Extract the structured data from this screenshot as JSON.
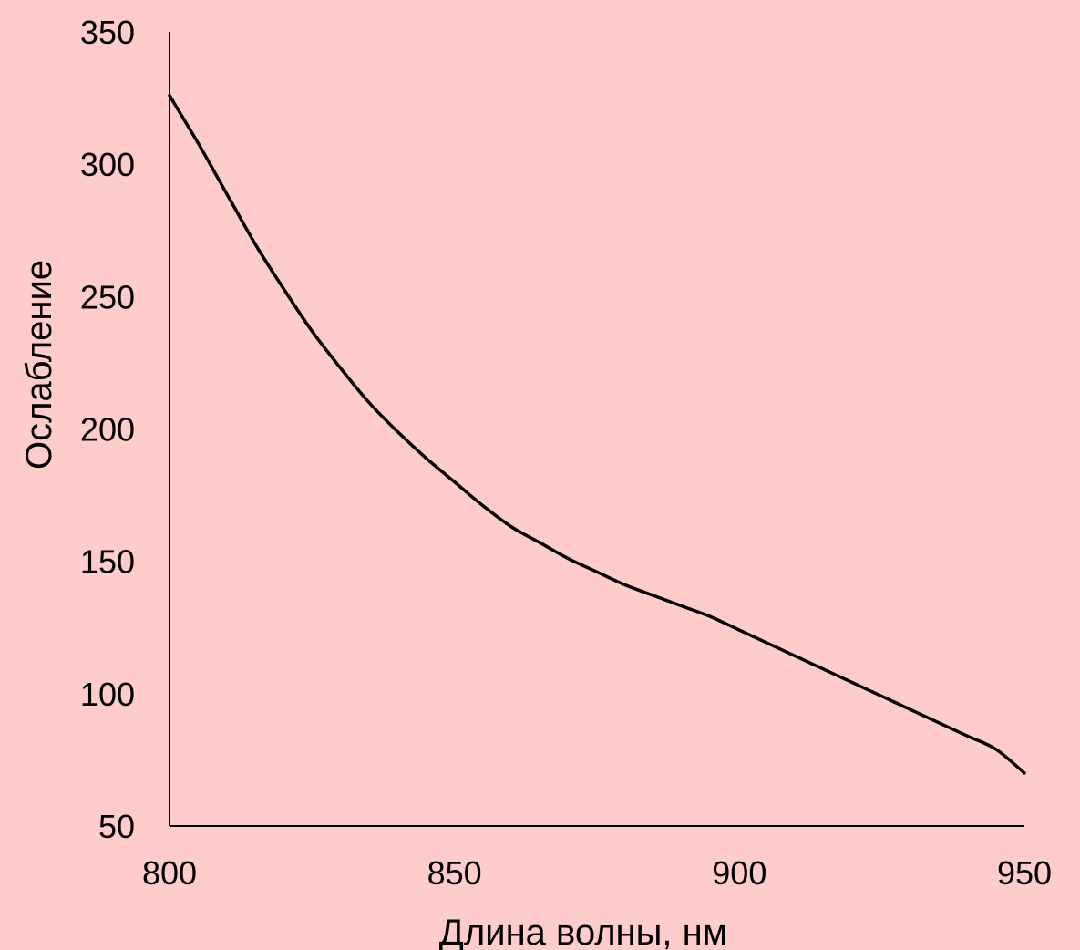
{
  "chart_data": {
    "type": "line",
    "title": "",
    "xlabel": "Длина волны, нм",
    "ylabel": "Ослабление",
    "xlim": [
      800,
      950
    ],
    "ylim": [
      50,
      350
    ],
    "x_ticks": [
      800,
      850,
      900,
      950
    ],
    "y_ticks": [
      50,
      100,
      150,
      200,
      250,
      300,
      350
    ],
    "grid": false,
    "legend": "none",
    "colors": {
      "background": "#ffcccc",
      "line": "#000000",
      "axis": "#000000"
    },
    "series": [
      {
        "x": [
          800,
          805,
          810,
          815,
          820,
          825,
          830,
          835,
          840,
          845,
          850,
          855,
          860,
          865,
          870,
          875,
          880,
          885,
          890,
          895,
          900,
          905,
          910,
          915,
          920,
          925,
          930,
          935,
          940,
          945,
          950
        ],
        "values": [
          326,
          308,
          289,
          270,
          253,
          237,
          223,
          210,
          199,
          189,
          180,
          171,
          163,
          157,
          151,
          146,
          141,
          137,
          133,
          129,
          124,
          119,
          114,
          109,
          104,
          99,
          94,
          89,
          84,
          79,
          70
        ]
      }
    ]
  }
}
